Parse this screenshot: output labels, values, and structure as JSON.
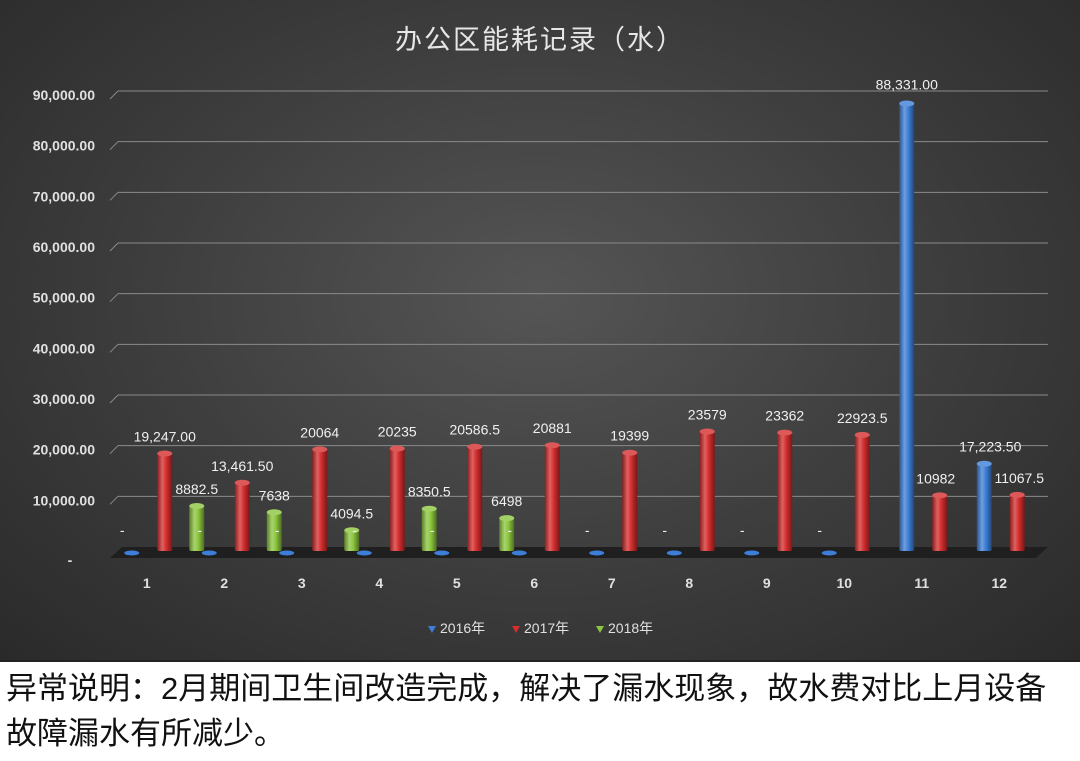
{
  "chart_data": {
    "type": "bar",
    "title": "办公区能耗记录（水）",
    "categories": [
      "1",
      "2",
      "3",
      "4",
      "5",
      "6",
      "7",
      "8",
      "9",
      "10",
      "11",
      "12"
    ],
    "ylim": [
      0,
      90000
    ],
    "yticks": [
      {
        "value": 0,
        "label": "-"
      },
      {
        "value": 10000,
        "label": "10,000.00"
      },
      {
        "value": 20000,
        "label": "20,000.00"
      },
      {
        "value": 30000,
        "label": "30,000.00"
      },
      {
        "value": 40000,
        "label": "40,000.00"
      },
      {
        "value": 50000,
        "label": "50,000.00"
      },
      {
        "value": 60000,
        "label": "60,000.00"
      },
      {
        "value": 70000,
        "label": "70,000.00"
      },
      {
        "value": 80000,
        "label": "80,000.00"
      },
      {
        "value": 90000,
        "label": "90,000.00"
      }
    ],
    "grid": true,
    "legend_position": "bottom",
    "series": [
      {
        "name": "2016年",
        "color": "#3d7fd8",
        "values": [
          0,
          0,
          0,
          0,
          0,
          0,
          0,
          0,
          0,
          0,
          88331,
          17223.5
        ],
        "labels": [
          "-",
          "-",
          "-",
          "-",
          "-",
          "-",
          "-",
          "-",
          "-",
          "-",
          "88,331.00",
          "17,223.50"
        ]
      },
      {
        "name": "2017年",
        "color": "#d42e2e",
        "values": [
          19247,
          13461.5,
          20064,
          20235,
          20586.5,
          20881,
          19399,
          23579,
          23362,
          22923.5,
          10982,
          11067.5
        ],
        "labels": [
          "19,247.00",
          "13,461.50",
          "20064",
          "20235",
          "20586.5",
          "20881",
          "19399",
          "23579",
          "23362",
          "22923.5",
          "10982",
          "11067.5"
        ]
      },
      {
        "name": "2018年",
        "color": "#8cc63e",
        "values": [
          8882.5,
          7638,
          4094.5,
          8350.5,
          6498,
          null,
          null,
          null,
          null,
          null,
          null,
          null
        ],
        "labels": [
          "8882.5",
          "7638",
          "4094.5",
          "8350.5",
          "6498",
          "",
          "",
          "",
          "",
          "",
          "",
          ""
        ]
      }
    ]
  },
  "note": {
    "text": "异常说明：2月期间卫生间改造完成，解决了漏水现象，故水费对比上月设备故障漏水有所减少。"
  }
}
